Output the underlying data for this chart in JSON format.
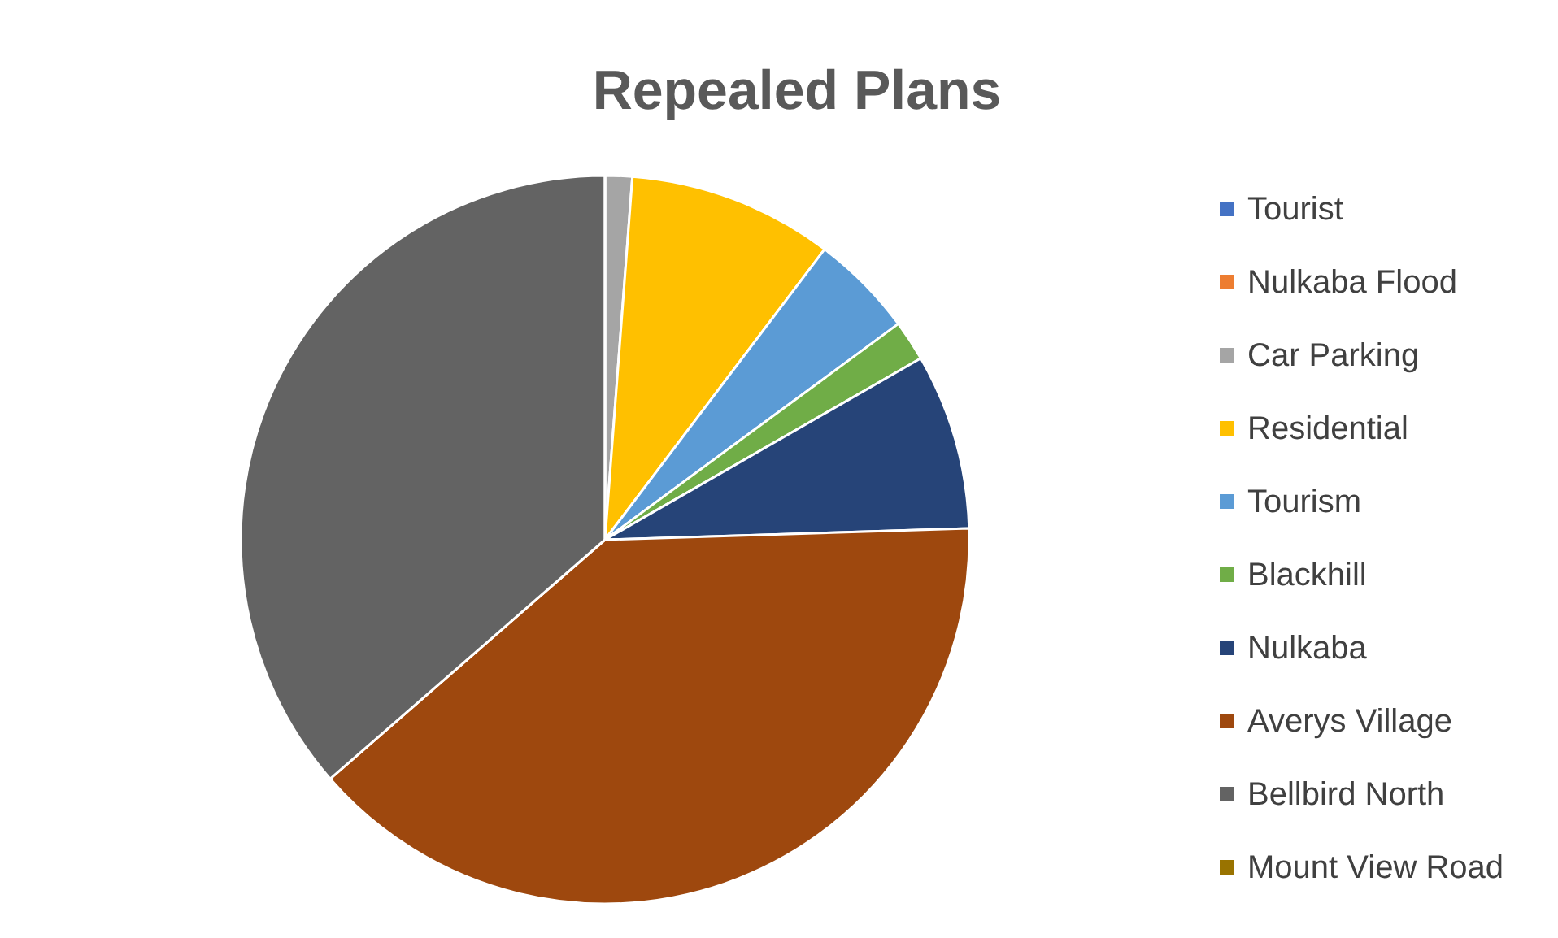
{
  "chart_data": {
    "type": "pie",
    "title": "Repealed Plans",
    "categories": [
      "Tourist",
      "Nulkaba Flood",
      "Car Parking",
      "Residential",
      "Tourism",
      "Blackhill",
      "Nulkaba",
      "Averys Village",
      "Bellbird North",
      "Mount View Road"
    ],
    "values": [
      0,
      0,
      1.2,
      9.1,
      4.6,
      1.8,
      7.8,
      39.1,
      36.4,
      0
    ],
    "colors": [
      "#4472c4",
      "#ed7d31",
      "#a5a5a5",
      "#ffc000",
      "#5b9bd5",
      "#70ad47",
      "#264478",
      "#9e480e",
      "#636363",
      "#997300"
    ],
    "legend": "right"
  }
}
